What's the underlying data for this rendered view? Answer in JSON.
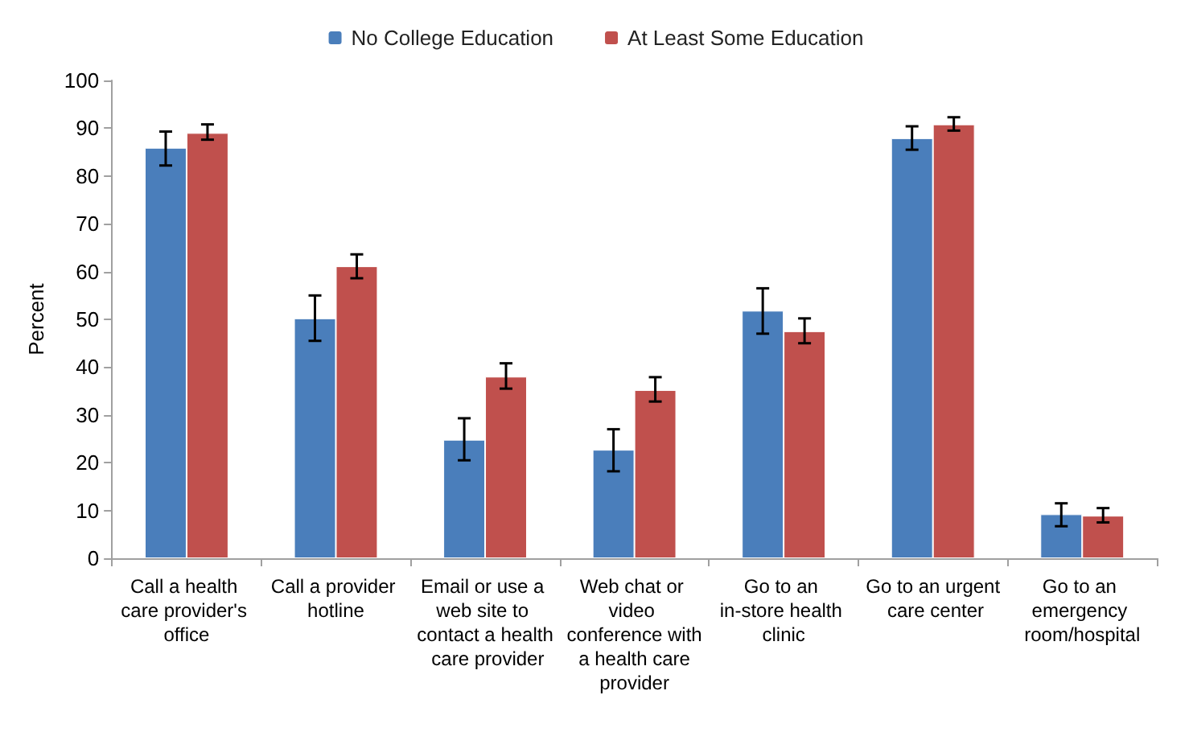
{
  "chart_data": {
    "type": "bar",
    "ylabel": "Percent",
    "categories": [
      "Call a health care provider's office",
      "Call a provider hotline",
      "Email or use a web site to contact a health care provider",
      "Web chat or video conference with a health care provider",
      "Go to an in-store health clinic",
      "Go to an urgent care center",
      "Go to an emergency room/hospital"
    ],
    "series": [
      {
        "name": "No College Education",
        "color": "#4a7ebb",
        "values": [
          85.9,
          50.2,
          24.8,
          22.7,
          51.8,
          87.9,
          9.2
        ],
        "errors": [
          [
            82.2,
            89.3
          ],
          [
            45.5,
            55.0
          ],
          [
            20.5,
            29.3
          ],
          [
            18.2,
            27.0
          ],
          [
            47.0,
            56.5
          ],
          [
            85.5,
            90.4
          ],
          [
            6.7,
            11.5
          ]
        ]
      },
      {
        "name": "At Least Some Education",
        "color": "#c0504d",
        "values": [
          89.0,
          61.1,
          38.0,
          35.2,
          47.5,
          90.8,
          8.9
        ],
        "errors": [
          [
            87.6,
            90.8
          ],
          [
            58.6,
            63.6
          ],
          [
            35.5,
            40.8
          ],
          [
            32.8,
            37.9
          ],
          [
            45.0,
            50.2
          ],
          [
            89.5,
            92.3
          ],
          [
            7.5,
            10.5
          ]
        ]
      }
    ],
    "ylim": [
      0,
      100
    ],
    "yticks": [
      0,
      10,
      20,
      30,
      40,
      50,
      60,
      70,
      80,
      90,
      100
    ],
    "grid": false,
    "legend": "top"
  }
}
